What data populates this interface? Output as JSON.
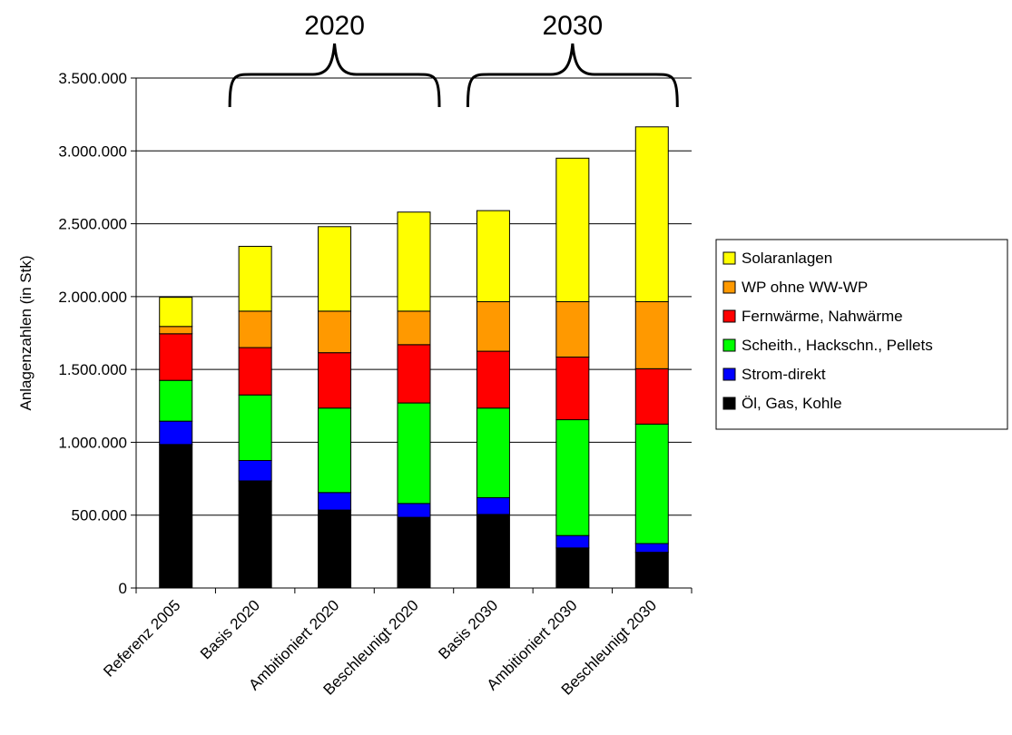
{
  "chart_data": {
    "type": "bar",
    "stacked": true,
    "ylabel": "Anlagenzahlen (in Stk)",
    "ylim": [
      0,
      3500000
    ],
    "ytick_step": 500000,
    "yticks": [
      "0",
      "500.000",
      "1.000.000",
      "1.500.000",
      "2.000.000",
      "2.500.000",
      "3.000.000",
      "3.500.000"
    ],
    "grid": true,
    "legend_position": "right",
    "categories": [
      "Referenz 2005",
      "Basis 2020",
      "Ambitioniert 2020",
      "Beschleunigt 2020",
      "Basis 2030",
      "Ambitioniert 2030",
      "Beschleunigt 2030"
    ],
    "series": [
      {
        "name": "Öl, Gas, Kohle",
        "color": "#000000",
        "values": [
          985000,
          735000,
          535000,
          485000,
          505000,
          275000,
          245000
        ]
      },
      {
        "name": "Strom-direkt",
        "color": "#0000ff",
        "values": [
          160000,
          140000,
          120000,
          95000,
          115000,
          85000,
          60000
        ]
      },
      {
        "name": "Scheith., Hackschn., Pellets",
        "color": "#00ff00",
        "values": [
          280000,
          450000,
          580000,
          690000,
          615000,
          795000,
          820000
        ]
      },
      {
        "name": "Fernwärme, Nahwärme",
        "color": "#ff0000",
        "values": [
          320000,
          325000,
          380000,
          400000,
          390000,
          430000,
          380000
        ]
      },
      {
        "name": "WP ohne WW-WP",
        "color": "#ff9900",
        "values": [
          50000,
          250000,
          285000,
          230000,
          340000,
          380000,
          460000
        ]
      },
      {
        "name": "Solaranlagen",
        "color": "#ffff00",
        "values": [
          200000,
          445000,
          580000,
          680000,
          625000,
          985000,
          1200000
        ]
      }
    ],
    "annotations": [
      {
        "text": "2020",
        "from_category": 1,
        "to_category": 3
      },
      {
        "text": "2030",
        "from_category": 4,
        "to_category": 6
      }
    ]
  }
}
